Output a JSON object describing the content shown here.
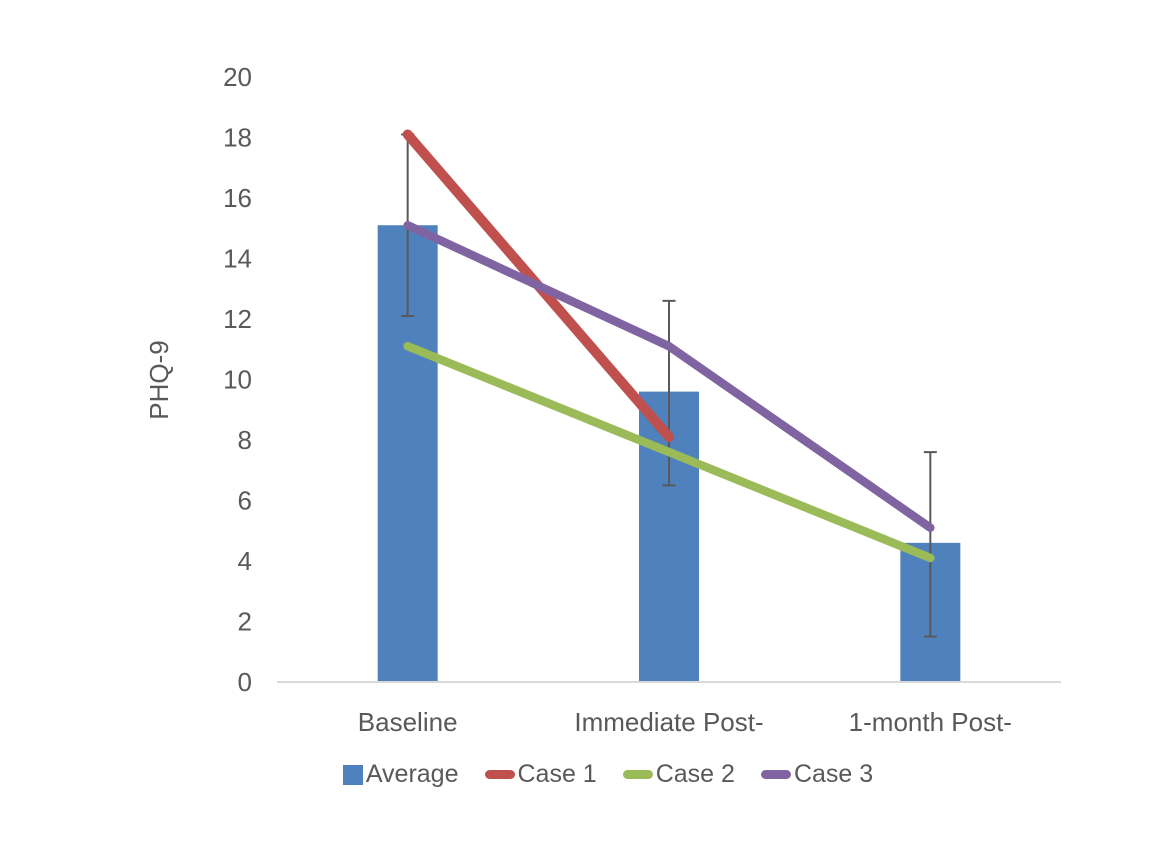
{
  "chart_data": {
    "type": "bar+line",
    "title": "",
    "xlabel": "",
    "ylabel": "PHQ-9",
    "categories": [
      "Baseline",
      "Immediate Post-",
      "1-month Post-"
    ],
    "ylim": [
      0,
      20
    ],
    "yticks": [
      0,
      2,
      4,
      6,
      8,
      10,
      12,
      14,
      16,
      18,
      20
    ],
    "grid": false,
    "legend_position": "bottom",
    "bar_series": {
      "name": "Average",
      "color": "#4F81BD",
      "values": [
        15.1,
        9.6,
        4.6
      ],
      "error_bars": {
        "upper": [
          18.1,
          12.6,
          7.6
        ],
        "lower": [
          12.1,
          6.5,
          1.5
        ]
      }
    },
    "line_series": [
      {
        "name": "Case 1",
        "color": "#C0504D",
        "values": [
          18.1,
          8.1,
          null
        ]
      },
      {
        "name": "Case 2",
        "color": "#9BBB59",
        "values": [
          11.1,
          7.6,
          4.1
        ]
      },
      {
        "name": "Case 3",
        "color": "#8064A2",
        "values": [
          15.1,
          11.1,
          5.1
        ]
      }
    ],
    "legend": [
      {
        "label": "Average",
        "swatch": "square",
        "color": "#4F81BD"
      },
      {
        "label": "Case 1",
        "swatch": "line",
        "color": "#C0504D"
      },
      {
        "label": "Case 2",
        "swatch": "line",
        "color": "#9BBB59"
      },
      {
        "label": "Case 3",
        "swatch": "line",
        "color": "#8064A2"
      }
    ],
    "colors": {
      "axis_line": "#D9D9D9",
      "error_bar": "#595959",
      "text": "#595959",
      "background": "#FFFFFF"
    }
  }
}
